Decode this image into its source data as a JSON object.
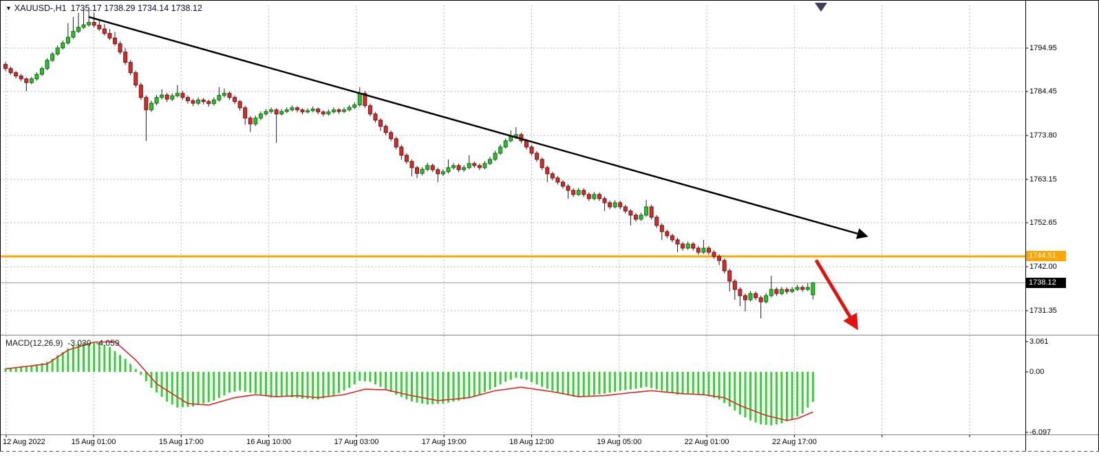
{
  "header": {
    "dropdown_icon": "▼",
    "symbol_label": "XAUUSD-,H1",
    "ohlc_values": "1735.17 1738.29 1734.14 1738.12"
  },
  "price_axis": {
    "gridline_labels": [
      "1794.95",
      "1784.45",
      "1773.80",
      "1763.15",
      "1752.65",
      "1742.00",
      "1731.35"
    ],
    "level_tag": {
      "label": "1744.51",
      "color": "#FFA500"
    },
    "price_tag": {
      "label": "1738.12",
      "color": "#000000"
    }
  },
  "macd_panel": {
    "indicator_name": "MACD(12,26,9)",
    "value_main": "-3.030",
    "value_signal": "-4.059",
    "axis_labels": [
      "3.061",
      "0.00",
      "-6.097"
    ]
  },
  "colors": {
    "bull_fill": "#2FBE2F",
    "bull_stroke": "#0E6F0E",
    "bear_fill": "#CE2F2F",
    "bear_stroke": "#7E0E0E",
    "wick": "#1c1c1c",
    "grid": "#b9b9b9",
    "histogram": "#33D133",
    "signal_line": "#E32222",
    "trendline": "#000000",
    "arrow": "#E8100C",
    "level_line": "#FFA500",
    "current_price_line": "#9a9a9a",
    "shift_marker": "#3f3f5f"
  },
  "chart_data": {
    "type": "candlestick",
    "symbol": "XAUUSD-",
    "timeframe": "H1",
    "last_ohlc": {
      "open": 1735.17,
      "high": 1738.29,
      "low": 1734.14,
      "close": 1738.12
    },
    "price_gridlines": [
      1794.95,
      1784.45,
      1773.8,
      1763.15,
      1752.65,
      1742.0,
      1731.35
    ],
    "levels": {
      "horizontal_line": 1744.51,
      "current_price": 1738.12
    },
    "time_labels": [
      "12 Aug 2022",
      "15 Aug 01:00",
      "15 Aug 17:00",
      "16 Aug 10:00",
      "17 Aug 03:00",
      "17 Aug 19:00",
      "18 Aug 12:00",
      "19 Aug 05:00",
      "22 Aug 01:00",
      "22 Aug 17:00"
    ],
    "candles_ohlc": [
      [
        1791,
        1791.6,
        1789.4,
        1790
      ],
      [
        1790,
        1790.5,
        1788.5,
        1789
      ],
      [
        1789,
        1789.4,
        1787.6,
        1788.2
      ],
      [
        1788.2,
        1788.7,
        1786.9,
        1787.5
      ],
      [
        1787.5,
        1787.9,
        1784.5,
        1786.6
      ],
      [
        1786.6,
        1788,
        1786.2,
        1787.5
      ],
      [
        1787.5,
        1789.1,
        1787.1,
        1788.6
      ],
      [
        1788.6,
        1790.5,
        1788.2,
        1790
      ],
      [
        1790,
        1792.5,
        1789.6,
        1792
      ],
      [
        1792,
        1794,
        1791.6,
        1793.5
      ],
      [
        1793.5,
        1795.6,
        1793.1,
        1795
      ],
      [
        1795,
        1796.8,
        1794.6,
        1796.2
      ],
      [
        1796.2,
        1801,
        1795.8,
        1797.6
      ],
      [
        1797.6,
        1802.5,
        1797.2,
        1799
      ],
      [
        1799,
        1803.5,
        1798.6,
        1800
      ],
      [
        1800,
        1804.5,
        1799.6,
        1800.6
      ],
      [
        1800.6,
        1804.8,
        1800.1,
        1801.2
      ],
      [
        1801.2,
        1803.5,
        1799.9,
        1800.5
      ],
      [
        1800.5,
        1802,
        1799.1,
        1799.6
      ],
      [
        1799.6,
        1800.8,
        1798,
        1798.5
      ],
      [
        1798.5,
        1799.6,
        1796.9,
        1797.4
      ],
      [
        1797.4,
        1798.9,
        1795.5,
        1796
      ],
      [
        1796,
        1796.6,
        1793.4,
        1794
      ],
      [
        1794,
        1795,
        1790.9,
        1791.5
      ],
      [
        1791.5,
        1792.1,
        1788.4,
        1789
      ],
      [
        1789,
        1789.5,
        1785.4,
        1786
      ],
      [
        1786,
        1786.6,
        1782.4,
        1783
      ],
      [
        1783,
        1783.5,
        1772.5,
        1780
      ],
      [
        1780,
        1782.2,
        1779.5,
        1781.6
      ],
      [
        1781.6,
        1783.6,
        1781.1,
        1783
      ],
      [
        1783,
        1785,
        1782.5,
        1783.6
      ],
      [
        1783.6,
        1784.1,
        1781.9,
        1782.6
      ],
      [
        1782.6,
        1784,
        1782.1,
        1783.4
      ],
      [
        1783.4,
        1786,
        1783,
        1784
      ],
      [
        1784,
        1784.6,
        1782.4,
        1783
      ],
      [
        1783,
        1783.5,
        1781.5,
        1782.2
      ],
      [
        1782.2,
        1782.7,
        1780.9,
        1781.6
      ],
      [
        1781.6,
        1783,
        1781.1,
        1782.4
      ],
      [
        1782.4,
        1782.9,
        1781.3,
        1782
      ],
      [
        1782,
        1782.5,
        1780.8,
        1781.5
      ],
      [
        1781.5,
        1783,
        1781,
        1782.4
      ],
      [
        1782.4,
        1785.5,
        1782,
        1783.5
      ],
      [
        1783.5,
        1785.2,
        1783,
        1784
      ],
      [
        1784,
        1784.5,
        1782.4,
        1783
      ],
      [
        1783,
        1783.5,
        1781.4,
        1782
      ],
      [
        1782,
        1782.4,
        1779.8,
        1780.5
      ],
      [
        1780.5,
        1781,
        1776.4,
        1778
      ],
      [
        1778,
        1778.5,
        1774.6,
        1776.6
      ],
      [
        1776.6,
        1778.6,
        1776.1,
        1778
      ],
      [
        1778,
        1779.6,
        1777.5,
        1779
      ],
      [
        1779,
        1780.2,
        1778.6,
        1779.6
      ],
      [
        1779.6,
        1780.6,
        1779.1,
        1780
      ],
      [
        1780,
        1780.4,
        1772,
        1779
      ],
      [
        1779,
        1780.2,
        1778.6,
        1779.6
      ],
      [
        1779.6,
        1780.6,
        1779.2,
        1780
      ],
      [
        1780,
        1781.1,
        1779.6,
        1780.5
      ],
      [
        1780.5,
        1780.9,
        1779.4,
        1780
      ],
      [
        1780,
        1780.4,
        1778.9,
        1779.5
      ],
      [
        1779.5,
        1780.4,
        1779.1,
        1779.8
      ],
      [
        1779.8,
        1780.8,
        1779.4,
        1780.2
      ],
      [
        1780.2,
        1780.6,
        1778.9,
        1779.5
      ],
      [
        1779.5,
        1779.9,
        1778.4,
        1779
      ],
      [
        1779,
        1780.1,
        1778.6,
        1779.5
      ],
      [
        1779.5,
        1780.6,
        1779.1,
        1780
      ],
      [
        1780,
        1780.4,
        1779,
        1779.6
      ],
      [
        1779.6,
        1780.6,
        1779.2,
        1780
      ],
      [
        1780,
        1781.2,
        1779.6,
        1780.6
      ],
      [
        1780.6,
        1781.8,
        1780.2,
        1781.2
      ],
      [
        1781.2,
        1785.5,
        1780.8,
        1784
      ],
      [
        1784,
        1784.6,
        1780.4,
        1781
      ],
      [
        1781,
        1781.5,
        1778.4,
        1779
      ],
      [
        1779,
        1779.5,
        1776.9,
        1777.5
      ],
      [
        1777.5,
        1778,
        1774.9,
        1776
      ],
      [
        1776,
        1776.5,
        1773.9,
        1774.5
      ],
      [
        1774.5,
        1775,
        1772.4,
        1773
      ],
      [
        1773,
        1773.5,
        1770.4,
        1771
      ],
      [
        1771,
        1771.5,
        1767.9,
        1769
      ],
      [
        1769,
        1769.5,
        1766.9,
        1767.5
      ],
      [
        1767.5,
        1768,
        1763.9,
        1766
      ],
      [
        1766,
        1766.4,
        1763.5,
        1764.6
      ],
      [
        1764.6,
        1766.1,
        1764.1,
        1765.6
      ],
      [
        1765.6,
        1767.2,
        1765.1,
        1766.5
      ],
      [
        1766.5,
        1767,
        1764.9,
        1765.5
      ],
      [
        1765.5,
        1766,
        1762.5,
        1764.5
      ],
      [
        1764.5,
        1765.6,
        1764,
        1765
      ],
      [
        1765,
        1768,
        1764.6,
        1766
      ],
      [
        1766,
        1767.1,
        1765.5,
        1766.5
      ],
      [
        1766.5,
        1767,
        1764.9,
        1765.5
      ],
      [
        1765.5,
        1766.6,
        1765,
        1766
      ],
      [
        1766,
        1769,
        1765.6,
        1767
      ],
      [
        1767,
        1767.5,
        1765.9,
        1766.5
      ],
      [
        1766.5,
        1767,
        1765.4,
        1766
      ],
      [
        1766,
        1767.6,
        1765.6,
        1767
      ],
      [
        1767,
        1768.6,
        1766.6,
        1768
      ],
      [
        1768,
        1770.1,
        1767.6,
        1769.5
      ],
      [
        1769.5,
        1771.6,
        1769.1,
        1771
      ],
      [
        1771,
        1773.1,
        1770.6,
        1772.5
      ],
      [
        1772.5,
        1775,
        1772.1,
        1773.5
      ],
      [
        1773.5,
        1775.8,
        1772.9,
        1774
      ],
      [
        1774,
        1774.5,
        1771.9,
        1772.5
      ],
      [
        1772.5,
        1773,
        1770.4,
        1771
      ],
      [
        1771,
        1771.5,
        1768.9,
        1769.5
      ],
      [
        1769.5,
        1770,
        1767.4,
        1768
      ],
      [
        1768,
        1768.5,
        1765.4,
        1766
      ],
      [
        1766,
        1766.5,
        1762.5,
        1764.5
      ],
      [
        1764.5,
        1765,
        1762.9,
        1763.5
      ],
      [
        1763.5,
        1764,
        1761.9,
        1762.5
      ],
      [
        1762.5,
        1763,
        1760.9,
        1761.5
      ],
      [
        1761.5,
        1762,
        1758.5,
        1760.5
      ],
      [
        1760.5,
        1761,
        1758.9,
        1759.5
      ],
      [
        1759.5,
        1761.1,
        1759.1,
        1760.5
      ],
      [
        1760.5,
        1761,
        1758.9,
        1759.5
      ],
      [
        1759.5,
        1760,
        1757.9,
        1758.5
      ],
      [
        1758.5,
        1760.1,
        1758.1,
        1759.5
      ],
      [
        1759.5,
        1760,
        1757.9,
        1758.5
      ],
      [
        1758.5,
        1759,
        1755.5,
        1757.5
      ],
      [
        1757.5,
        1758,
        1755.9,
        1756.5
      ],
      [
        1756.5,
        1758.1,
        1756.1,
        1757.5
      ],
      [
        1757.5,
        1758,
        1755.9,
        1756.5
      ],
      [
        1756.5,
        1757,
        1754.9,
        1755.5
      ],
      [
        1755.5,
        1756,
        1752,
        1754.5
      ],
      [
        1754.5,
        1755,
        1752.9,
        1753.5
      ],
      [
        1753.5,
        1755.1,
        1753.1,
        1754.5
      ],
      [
        1754.5,
        1758.2,
        1754.1,
        1756.5
      ],
      [
        1756.5,
        1757,
        1753.4,
        1754
      ],
      [
        1754,
        1754.5,
        1751.4,
        1752
      ],
      [
        1752,
        1752.5,
        1748.5,
        1750.5
      ],
      [
        1750.5,
        1751,
        1748.9,
        1749.5
      ],
      [
        1749.5,
        1750,
        1747.9,
        1748.5
      ],
      [
        1748.5,
        1749,
        1745.5,
        1747.5
      ],
      [
        1747.5,
        1748,
        1745.9,
        1746.5
      ],
      [
        1746.5,
        1748.1,
        1746.1,
        1747.5
      ],
      [
        1747.5,
        1748,
        1745.9,
        1746.5
      ],
      [
        1746.5,
        1747,
        1744.9,
        1745.5
      ],
      [
        1745.5,
        1748.5,
        1745.1,
        1746.5
      ],
      [
        1746.5,
        1747,
        1744.9,
        1745.5
      ],
      [
        1745.5,
        1746,
        1743.9,
        1744.5
      ],
      [
        1744.5,
        1745,
        1742.4,
        1743.5
      ],
      [
        1743.5,
        1744,
        1740.4,
        1741
      ],
      [
        1741,
        1741.5,
        1736,
        1738.5
      ],
      [
        1738.5,
        1739,
        1734,
        1736.5
      ],
      [
        1736.5,
        1737,
        1732.5,
        1735
      ],
      [
        1735,
        1735.5,
        1731.2,
        1734
      ],
      [
        1734,
        1736.1,
        1733.6,
        1735.5
      ],
      [
        1735.5,
        1736,
        1733.9,
        1734.5
      ],
      [
        1734.5,
        1735,
        1729.5,
        1733.5
      ],
      [
        1733.5,
        1735.6,
        1733.1,
        1735
      ],
      [
        1735,
        1739.8,
        1734.6,
        1736.5
      ],
      [
        1736.5,
        1737,
        1734.9,
        1735.5
      ],
      [
        1735.5,
        1737.1,
        1735.1,
        1736.5
      ],
      [
        1736.5,
        1737,
        1735.4,
        1736
      ],
      [
        1736,
        1737.1,
        1735.6,
        1736.5
      ],
      [
        1736.5,
        1737.6,
        1736.1,
        1737
      ],
      [
        1737,
        1737.5,
        1735.9,
        1736.5
      ],
      [
        1736.5,
        1738,
        1736.1,
        1737
      ],
      [
        1735.2,
        1738.3,
        1734.1,
        1738.1
      ]
    ],
    "indicator": {
      "type": "MACD",
      "params": [
        12,
        26,
        9
      ],
      "current": {
        "macd": -3.03,
        "signal": -4.059
      },
      "axis_range": [
        3.061,
        -6.097
      ],
      "histogram": [
        0.35,
        0.39,
        0.43,
        0.46,
        0.5,
        0.63,
        0.75,
        0.88,
        1.0,
        1.33,
        1.67,
        2.0,
        2.35,
        2.7,
        2.83,
        2.95,
        2.93,
        2.92,
        2.9,
        2.7,
        2.5,
        2.1,
        1.7,
        1.3,
        0.8,
        0.3,
        -0.3,
        -0.95,
        -1.6,
        -2.07,
        -2.53,
        -3.0,
        -3.3,
        -3.6,
        -3.57,
        -3.53,
        -3.5,
        -3.35,
        -3.2,
        -3.05,
        -2.9,
        -2.63,
        -2.37,
        -2.1,
        -2.0,
        -1.9,
        -2.0,
        -2.1,
        -2.2,
        -2.33,
        -2.47,
        -2.6,
        -2.57,
        -2.53,
        -2.5,
        -2.57,
        -2.63,
        -2.7,
        -2.73,
        -2.77,
        -2.8,
        -2.67,
        -2.53,
        -2.4,
        -2.13,
        -1.87,
        -1.6,
        -1.25,
        -0.9,
        -0.95,
        -1.0,
        -1.25,
        -1.5,
        -1.77,
        -2.03,
        -2.3,
        -2.53,
        -2.77,
        -3.0,
        -3.1,
        -3.2,
        -3.3,
        -3.27,
        -3.23,
        -3.2,
        -3.1,
        -3.0,
        -2.9,
        -2.77,
        -2.63,
        -2.5,
        -2.27,
        -2.03,
        -1.8,
        -1.53,
        -1.27,
        -1.0,
        -0.8,
        -0.6,
        -0.7,
        -0.8,
        -1.03,
        -1.27,
        -1.5,
        -1.7,
        -1.9,
        -2.1,
        -2.23,
        -2.37,
        -2.5,
        -2.47,
        -2.43,
        -2.4,
        -2.33,
        -2.27,
        -2.2,
        -2.1,
        -2.0,
        -1.9,
        -1.83,
        -1.77,
        -1.7,
        -1.6,
        -1.5,
        -1.63,
        -1.77,
        -1.9,
        -2.03,
        -2.17,
        -2.3,
        -2.27,
        -2.23,
        -2.2,
        -2.25,
        -2.3,
        -2.47,
        -2.63,
        -2.8,
        -3.15,
        -3.5,
        -3.9,
        -4.3,
        -4.6,
        -4.9,
        -5.1,
        -5.3,
        -5.35,
        -5.4,
        -5.3,
        -5.2,
        -5.0,
        -4.8,
        -4.5,
        -4.2,
        -3.6,
        -3.03
      ],
      "signal": [
        0.3,
        0.36,
        0.43,
        0.49,
        0.55,
        0.61,
        0.68,
        0.74,
        0.8,
        1.15,
        1.5,
        1.85,
        2.2,
        2.36,
        2.52,
        2.68,
        2.84,
        3.0,
        3.01,
        3.02,
        3.04,
        3.05,
        2.59,
        2.13,
        1.66,
        1.2,
        0.6,
        0.0,
        -0.6,
        -1.2,
        -1.53,
        -1.87,
        -2.2,
        -2.53,
        -2.87,
        -3.2,
        -3.24,
        -3.28,
        -3.31,
        -3.35,
        -3.2,
        -3.05,
        -2.9,
        -2.75,
        -2.6,
        -2.53,
        -2.45,
        -2.38,
        -2.3,
        -2.35,
        -2.4,
        -2.45,
        -2.5,
        -2.48,
        -2.45,
        -2.43,
        -2.4,
        -2.45,
        -2.5,
        -2.55,
        -2.6,
        -2.54,
        -2.48,
        -2.42,
        -2.36,
        -2.3,
        -2.16,
        -2.02,
        -1.89,
        -1.75,
        -1.76,
        -1.78,
        -1.79,
        -1.8,
        -1.92,
        -2.04,
        -2.16,
        -2.28,
        -2.4,
        -2.5,
        -2.6,
        -2.7,
        -2.8,
        -2.9,
        -2.85,
        -2.8,
        -2.75,
        -2.7,
        -2.65,
        -2.6,
        -2.46,
        -2.32,
        -2.18,
        -2.04,
        -1.9,
        -1.83,
        -1.76,
        -1.69,
        -1.62,
        -1.55,
        -1.63,
        -1.7,
        -1.78,
        -1.85,
        -1.93,
        -2.0,
        -2.1,
        -2.2,
        -2.3,
        -2.4,
        -2.5,
        -2.48,
        -2.46,
        -2.44,
        -2.42,
        -2.4,
        -2.34,
        -2.28,
        -2.22,
        -2.16,
        -2.1,
        -2.05,
        -2.0,
        -1.95,
        -1.9,
        -1.95,
        -2.0,
        -2.05,
        -2.1,
        -2.15,
        -2.2,
        -2.23,
        -2.25,
        -2.28,
        -2.3,
        -2.38,
        -2.45,
        -2.53,
        -2.6,
        -2.87,
        -3.13,
        -3.4,
        -3.6,
        -3.8,
        -4.0,
        -4.2,
        -4.4,
        -4.53,
        -4.65,
        -4.78,
        -4.9,
        -4.8,
        -4.7,
        -4.49,
        -4.27,
        -4.06
      ]
    },
    "annotations": {
      "trendline": {
        "from_index": 16,
        "from_price": 1802.5,
        "to_index": 165,
        "to_price": 1749.5
      },
      "down_arrow": {
        "from_index": 155.6,
        "from_price": 1743.6,
        "to_index": 163.2,
        "to_price": 1727.6
      }
    }
  }
}
